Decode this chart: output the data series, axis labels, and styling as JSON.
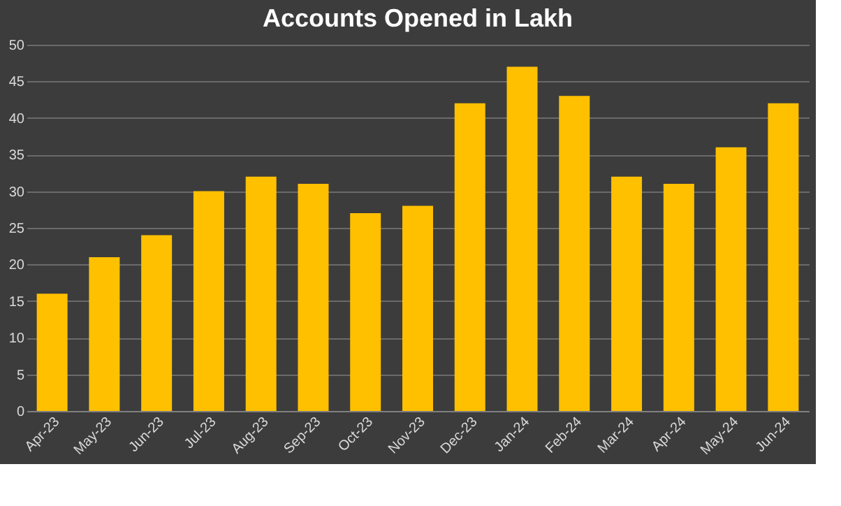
{
  "chart_data": {
    "type": "bar",
    "title": "Accounts Opened in Lakh",
    "categories": [
      "Apr-23",
      "May-23",
      "Jun-23",
      "Jul-23",
      "Aug-23",
      "Sep-23",
      "Oct-23",
      "Nov-23",
      "Dec-23",
      "Jan-24",
      "Feb-24",
      "Mar-24",
      "Apr-24",
      "May-24",
      "Jun-24"
    ],
    "values": [
      16,
      21,
      24,
      30,
      32,
      31,
      27,
      28,
      42,
      47,
      43,
      32,
      31,
      36,
      42
    ],
    "color": "#ffc000",
    "ylim": [
      0,
      50
    ],
    "yticks": [
      0,
      5,
      10,
      15,
      20,
      25,
      30,
      35,
      40,
      45,
      50
    ],
    "grid": "y",
    "legend": false
  }
}
